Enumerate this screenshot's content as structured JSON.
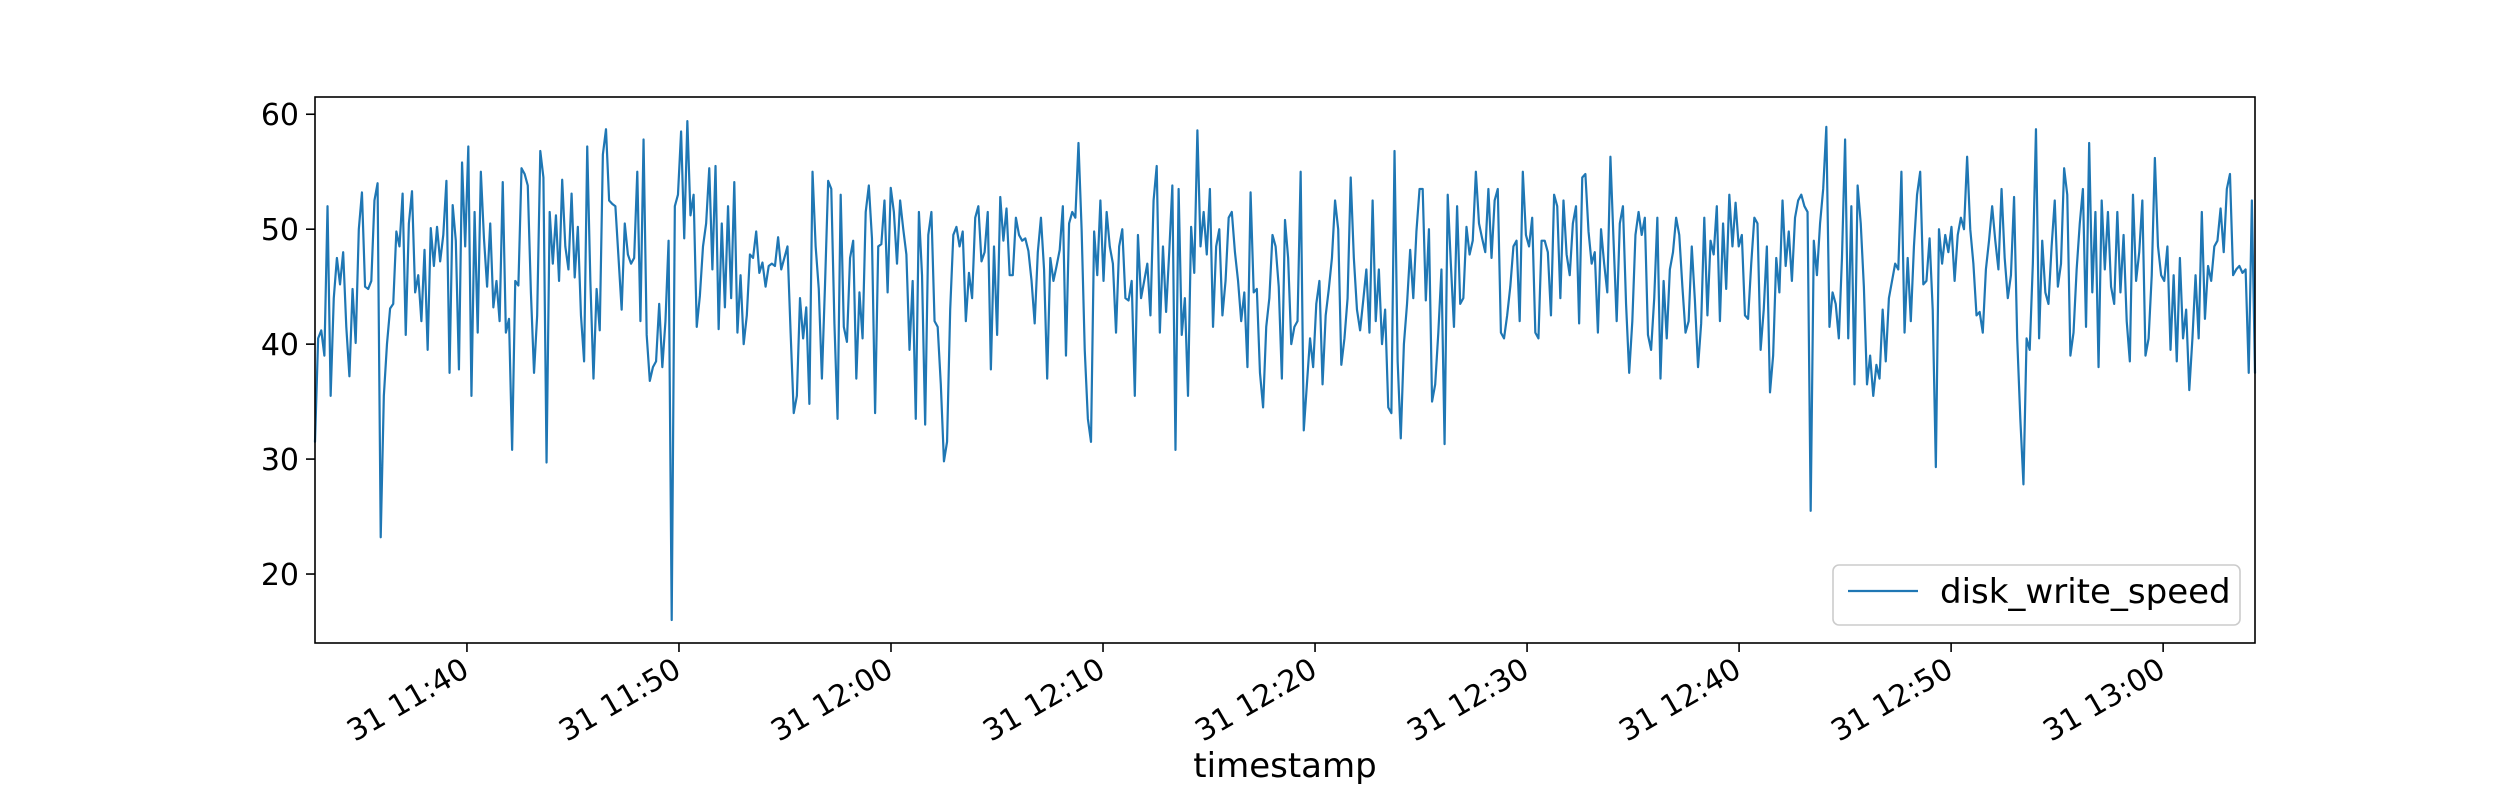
{
  "chart_data": {
    "type": "line",
    "title": "",
    "xlabel": "timestamp",
    "ylabel": "",
    "x_tick_labels": [
      "31 11:40",
      "31 11:50",
      "31 12:00",
      "31 12:10",
      "31 12:20",
      "31 12:30",
      "31 12:40",
      "31 12:50",
      "31 13:00"
    ],
    "y_ticks": [
      20,
      30,
      40,
      50,
      60
    ],
    "xlim": [
      "11:32:50",
      "13:04:20"
    ],
    "ylim": [
      14,
      61.5
    ],
    "grid": false,
    "legend_position": "lower-right",
    "series": [
      {
        "name": "disk_write_speed",
        "color": "#1f77b4",
        "values": [
          31.5,
          40.5,
          41.2,
          39.0,
          52.0,
          35.5,
          44.0,
          47.5,
          45.2,
          48.0,
          41.5,
          37.2,
          44.8,
          40.1,
          50.0,
          53.2,
          45.0,
          44.8,
          45.5,
          52.5,
          54.0,
          23.2,
          35.5,
          40.0,
          43.1,
          43.5,
          49.8,
          48.5,
          53.1,
          40.8,
          50.5,
          53.3,
          44.5,
          46.0,
          42.0,
          48.2,
          39.5,
          50.1,
          46.8,
          50.2,
          47.2,
          49.5,
          54.2,
          37.5,
          52.1,
          49.0,
          37.8,
          55.8,
          48.5,
          57.2,
          35.5,
          51.5,
          41.0,
          55.0,
          49.2,
          45.0,
          50.5,
          43.2,
          45.5,
          42.0,
          54.1,
          41.0,
          42.2,
          30.8,
          45.5,
          45.1,
          55.3,
          54.8,
          53.8,
          44.5,
          37.5,
          42.5,
          56.8,
          54.5,
          29.7,
          51.5,
          47.0,
          51.2,
          45.5,
          54.3,
          48.5,
          46.5,
          53.1,
          45.8,
          50.2,
          42.5,
          38.5,
          57.2,
          45.5,
          37.0,
          44.8,
          41.2,
          56.5,
          58.7,
          52.5,
          52.2,
          52.0,
          47.5,
          43.0,
          50.5,
          47.8,
          47.0,
          47.5,
          55.0,
          42.0,
          57.8,
          40.8,
          36.8,
          38.0,
          38.5,
          43.5,
          38.0,
          42.0,
          49.0,
          16.0,
          52.0,
          53.0,
          58.5,
          49.2,
          59.4,
          51.2,
          53.0,
          41.5,
          44.2,
          48.5,
          50.5,
          55.3,
          46.5,
          55.5,
          41.3,
          50.5,
          43.2,
          52.0,
          44.0,
          54.1,
          41.0,
          46.0,
          40.0,
          42.5,
          47.8,
          47.5,
          49.8,
          46.2,
          47.1,
          45.0,
          46.8,
          47.0,
          46.8,
          49.3,
          46.5,
          47.5,
          48.5,
          41.0,
          34.0,
          35.5,
          44.0,
          40.5,
          43.2,
          34.8,
          55.0,
          48.5,
          44.8,
          37.0,
          45.2,
          54.2,
          53.5,
          41.8,
          33.5,
          53.0,
          41.5,
          40.2,
          47.5,
          49.0,
          37.0,
          44.5,
          40.5,
          51.5,
          53.8,
          49.2,
          34.0,
          48.5,
          48.7,
          52.5,
          44.5,
          53.6,
          51.5,
          47.0,
          52.5,
          50.0,
          47.8,
          39.5,
          45.5,
          33.5,
          51.5,
          46.0,
          33.0,
          49.5,
          51.5,
          42.0,
          41.5,
          36.5,
          29.8,
          31.5,
          43.0,
          49.5,
          50.2,
          48.5,
          49.8,
          42.0,
          46.2,
          44.0,
          51.0,
          52.0,
          47.2,
          48.0,
          51.5,
          37.8,
          48.5,
          40.8,
          52.8,
          49.0,
          51.8,
          46.0,
          46.0,
          51.0,
          49.5,
          49.0,
          49.2,
          48.1,
          45.5,
          41.8,
          48.0,
          51.0,
          46.5,
          37.0,
          47.5,
          45.5,
          46.8,
          48.2,
          52.0,
          39.0,
          50.5,
          51.5,
          51.0,
          57.5,
          50.0,
          39.5,
          33.5,
          31.5,
          49.8,
          46.0,
          52.5,
          45.5,
          51.5,
          48.5,
          47.0,
          41.0,
          48.5,
          50.0,
          44.0,
          43.8,
          45.5,
          35.5,
          49.5,
          44.0,
          45.5,
          47.0,
          42.5,
          52.5,
          55.5,
          41.0,
          48.5,
          42.8,
          48.0,
          53.8,
          30.8,
          53.5,
          40.8,
          44.0,
          35.5,
          50.2,
          46.2,
          58.6,
          48.5,
          51.5,
          47.8,
          53.5,
          41.5,
          48.5,
          50.0,
          42.5,
          45.5,
          51.0,
          51.5,
          48.0,
          45.5,
          42.0,
          44.5,
          38.0,
          53.2,
          44.5,
          44.8,
          37.5,
          34.5,
          41.5,
          44.0,
          49.5,
          48.5,
          45.0,
          37.0,
          50.8,
          47.5,
          40.0,
          41.5,
          42.0,
          55.0,
          32.5,
          36.5,
          40.5,
          38.0,
          43.5,
          45.5,
          36.5,
          42.5,
          44.8,
          47.5,
          52.5,
          50.0,
          38.2,
          40.5,
          44.0,
          54.5,
          47.5,
          43.0,
          41.2,
          43.8,
          46.5,
          41.0,
          52.5,
          42.0,
          46.5,
          40.0,
          43.0,
          34.5,
          34.0,
          56.8,
          38.5,
          31.8,
          40.0,
          43.5,
          48.2,
          44.0,
          49.8,
          53.5,
          53.5,
          43.8,
          50.0,
          35.0,
          36.5,
          41.0,
          46.5,
          31.3,
          53.0,
          47.0,
          41.5,
          52.0,
          43.5,
          44.0,
          50.2,
          47.8,
          49.0,
          55.0,
          50.5,
          49.2,
          48.0,
          53.5,
          47.5,
          52.5,
          53.5,
          41.0,
          40.5,
          42.5,
          45.0,
          48.5,
          49.0,
          42.0,
          55.0,
          49.5,
          48.5,
          51.0,
          41.0,
          40.5,
          49.0,
          49.0,
          48.0,
          42.5,
          53.0,
          52.0,
          44.0,
          52.5,
          47.8,
          46.0,
          50.5,
          52.0,
          41.8,
          54.5,
          54.8,
          49.8,
          47.0,
          48.0,
          41.0,
          50.0,
          47.0,
          44.5,
          56.3,
          49.0,
          42.0,
          50.5,
          52.0,
          43.5,
          37.5,
          42.0,
          49.5,
          51.5,
          49.5,
          51.0,
          40.8,
          39.5,
          44.0,
          51.0,
          37.0,
          45.5,
          40.5,
          46.5,
          48.0,
          51.0,
          49.5,
          45.0,
          41.0,
          42.0,
          48.5,
          43.8,
          38.0,
          41.8,
          51.0,
          42.5,
          49.0,
          47.8,
          52.0,
          42.0,
          50.5,
          44.8,
          53.0,
          48.5,
          52.3,
          48.5,
          49.5,
          42.5,
          42.2,
          47.0,
          51.0,
          50.5,
          39.5,
          43.0,
          48.5,
          35.8,
          39.0,
          47.5,
          44.5,
          52.5,
          46.8,
          49.8,
          45.5,
          51.0,
          52.5,
          53.0,
          52.0,
          51.5,
          25.5,
          49.0,
          46.0,
          50.5,
          53.5,
          58.9,
          41.5,
          44.5,
          43.5,
          40.5,
          47.5,
          57.8,
          40.5,
          52.0,
          36.5,
          53.8,
          50.5,
          45.0,
          36.5,
          39.0,
          35.5,
          38.2,
          37.0,
          43.0,
          38.5,
          44.0,
          45.5,
          47.0,
          46.5,
          55.0,
          41.0,
          47.5,
          42.0,
          48.5,
          53.0,
          55.0,
          45.2,
          45.5,
          49.2,
          43.0,
          29.3,
          50.0,
          47.0,
          49.5,
          48.0,
          50.2,
          45.5,
          49.5,
          51.0,
          50.0,
          56.3,
          50.0,
          47.0,
          42.5,
          42.8,
          41.0,
          46.5,
          49.0,
          52.0,
          49.0,
          46.5,
          53.5,
          47.5,
          44.0,
          46.0,
          52.8,
          40.5,
          33.5,
          27.8,
          40.5,
          39.5,
          47.0,
          58.7,
          40.5,
          49.0,
          44.5,
          43.5,
          48.5,
          52.5,
          45.0,
          47.0,
          55.3,
          53.0,
          39.0,
          41.0,
          46.5,
          50.5,
          53.5,
          41.5,
          57.5,
          44.5,
          51.5,
          38.0,
          52.5,
          46.5,
          51.5,
          45.0,
          43.5,
          51.5,
          44.5,
          49.5,
          42.0,
          38.5,
          53.0,
          45.5,
          48.0,
          52.5,
          39.0,
          40.5,
          46.0,
          56.2,
          48.5,
          46.0,
          45.5,
          48.5,
          39.5,
          46.0,
          38.5,
          47.5,
          40.5,
          43.0,
          36.0,
          40.5,
          46.0,
          40.5,
          51.5,
          42.2,
          46.8,
          45.5,
          48.5,
          49.0,
          51.8,
          48.0,
          53.5,
          54.8,
          46.0,
          46.5,
          46.8,
          46.2,
          46.5,
          37.5,
          52.5,
          37.5
        ]
      }
    ]
  }
}
